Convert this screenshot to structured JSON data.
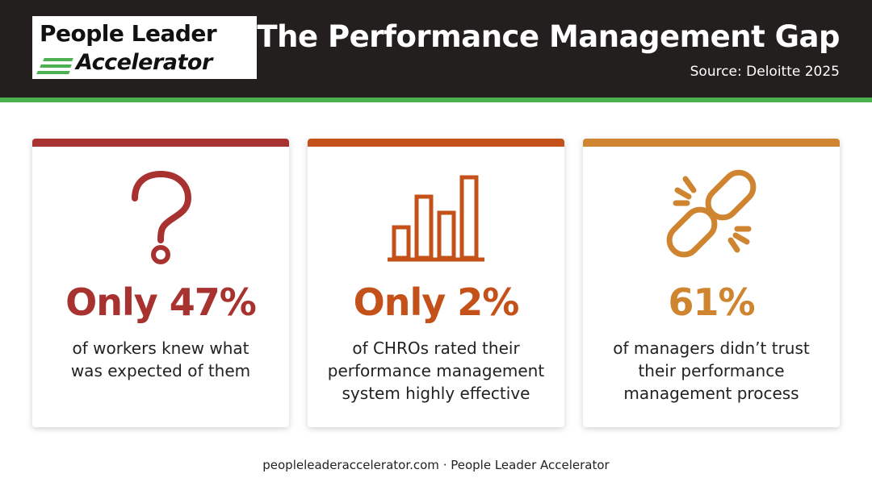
{
  "header": {
    "logo": [
      "People Leader",
      "Accelerator"
    ],
    "title": "The Performance Management Gap",
    "source": "Source: Deloitte 2025"
  },
  "cards": [
    {
      "stat": "Only 47%",
      "description": [
        "of workers knew what",
        "was expected of them"
      ]
    },
    {
      "stat": "Only 2%",
      "description": [
        "of CHROs rated their",
        "performance management",
        "system highly effective"
      ]
    },
    {
      "stat": "61%",
      "description": [
        "of managers didn’t trust",
        "their performance",
        "management process"
      ]
    }
  ],
  "footer": "peopleleaderaccelerator.com · People Leader Accelerator"
}
